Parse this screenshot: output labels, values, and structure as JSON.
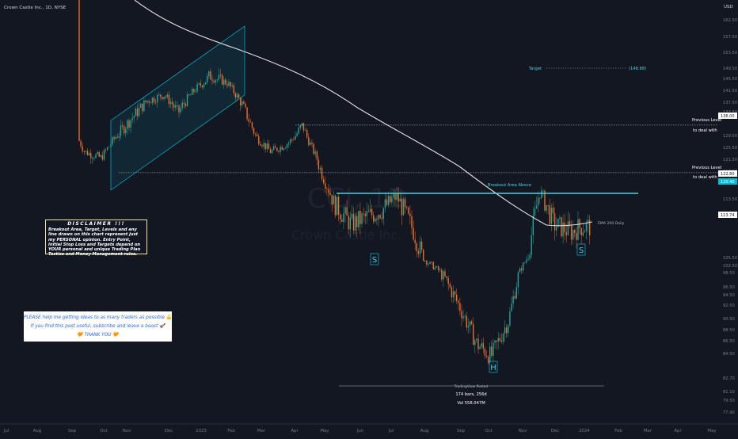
{
  "chart_data": {
    "type": "candlestick",
    "symbol_label": "Crown Castle Inc., 1D, NYSE",
    "watermark": "CCI, 1D",
    "watermark_sub": "Crown Castle Inc.",
    "currency": "USD",
    "current_price": "113.74",
    "y_ticks": [
      "162.50",
      "157.50",
      "153.50",
      "149.50",
      "145.50",
      "141.50",
      "137.50",
      "133.50",
      "129.50",
      "125.50",
      "121.50",
      "117.50",
      "113.50",
      "109.50",
      "105.50",
      "102.50",
      "98.50",
      "96.50",
      "94.50",
      "92.50",
      "90.50",
      "88.50",
      "86.50",
      "84.50",
      "82.70",
      "81.10",
      "79.50",
      "77.90"
    ],
    "x_ticks": [
      "Jul",
      "Aug",
      "Sep",
      "Oct",
      "Nov",
      "Dec",
      "2023",
      "Feb",
      "Mar",
      "Apr",
      "May",
      "Jun",
      "Jul",
      "Aug",
      "Sep",
      "Oct",
      "Nov",
      "Dec",
      "2024",
      "Feb",
      "Mar",
      "Apr",
      "May"
    ],
    "price_labels": [
      {
        "text": "136.00",
        "value": 136.0
      },
      {
        "text": "122.80",
        "value": 122.8
      },
      {
        "text": "120.40",
        "value": 120.4
      }
    ],
    "levels": [
      {
        "name": "Previous Level",
        "sub": "to deal with",
        "value": 136.0,
        "style": "dotted"
      },
      {
        "name": "Previous Level",
        "sub": "to deal with",
        "value": 122.8,
        "style": "dotted"
      },
      {
        "name": "Breakout Area Above",
        "value": 118.0,
        "style": "solid"
      },
      {
        "name": "Target",
        "value": 148.88,
        "label": "(148.88)",
        "style": "dotted"
      }
    ],
    "ema_label": "EMA 200 Daily",
    "pattern_labels": [
      "S",
      "H",
      "S"
    ],
    "bars_info": [
      "TradingView Posted",
      "174 bars, 256d",
      "Vol 558.047M"
    ],
    "series": [
      {
        "name": "price",
        "dates": [
          "2022-07-01",
          "2022-07-15",
          "2022-08-01",
          "2022-08-15",
          "2022-09-01",
          "2022-09-15",
          "2022-10-01",
          "2022-10-15",
          "2022-11-01",
          "2022-11-15",
          "2022-12-01",
          "2022-12-15",
          "2023-01-01",
          "2023-01-15",
          "2023-02-01",
          "2023-02-15",
          "2023-03-01",
          "2023-03-15",
          "2023-04-01",
          "2023-04-15",
          "2023-05-01",
          "2023-05-15",
          "2023-06-01",
          "2023-06-15",
          "2023-07-01",
          "2023-07-15",
          "2023-08-01",
          "2023-08-15",
          "2023-09-01",
          "2023-09-15",
          "2023-10-01",
          "2023-10-15",
          "2023-11-01",
          "2023-11-15",
          "2023-12-01",
          "2023-12-15",
          "2024-01-01",
          "2024-01-10"
        ],
        "close": [
          170,
          168,
          164,
          152,
          138,
          128,
          126,
          133,
          138,
          142,
          144,
          139,
          146,
          150,
          148,
          141,
          133,
          128,
          131,
          136,
          124,
          117,
          114,
          115,
          116,
          118,
          113,
          107,
          101,
          96,
          90,
          88,
          94,
          106,
          119,
          114,
          113,
          113.7
        ]
      }
    ]
  },
  "disclaimer": {
    "title": "DISCLAIMER !!!",
    "body": "Breakout Area, Target, Levels and any line drawn on this chart represent just my PERSONAL opinion. Entry Point, Initial Stop Loss and Targets depend on YOUR personal and unique Trading Plan Tactics and Money Management rules."
  },
  "plea": {
    "line1": "PLEASE help me getting ideas to as many traders as possible 💪",
    "line2": "If you find this post useful, subscribe and leave a boost 🚀",
    "line3": "🧡 THANK YOU 🧡"
  },
  "colors": {
    "up": "#26a69a",
    "down": "#ef6c24",
    "background": "#131722",
    "ema": "#e0e0e0",
    "channel": "#00bcd4",
    "breakout": "#4dd0e1",
    "axis_text": "#787b86"
  }
}
